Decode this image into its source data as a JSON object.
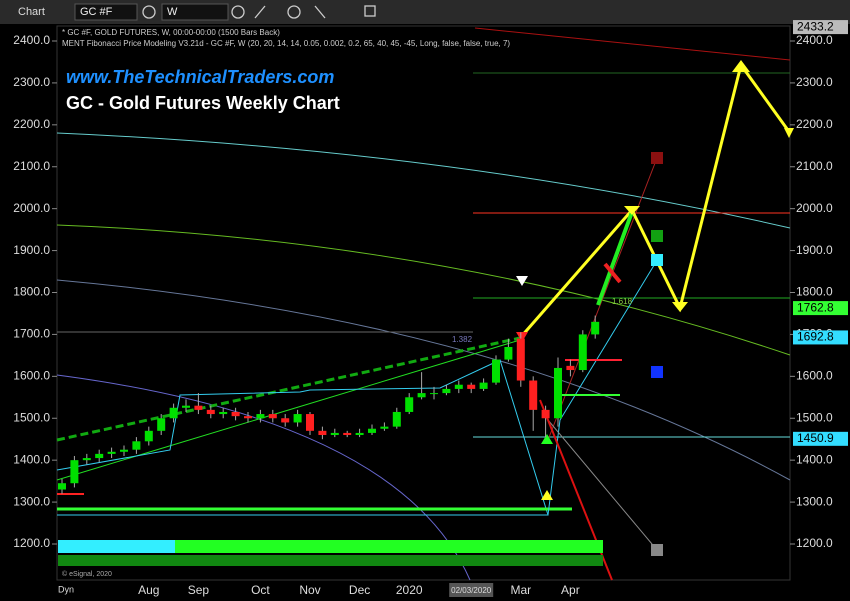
{
  "toolbar": {
    "app": "Chart",
    "symbol": "GC #F",
    "interval": "W"
  },
  "chart_data": {
    "type": "candlestick",
    "info_lines": [
      "* GC #F, GOLD FUTURES, W, 00:00-00:00 (1500 Bars Back)",
      "MENT Fibonacci Price Modeling V3.21d - GC #F, W (20, 20, 14, 14, 0.05, 0.002, 0.2, 65, 40, 45, -45, Long, false, false, true, 7)"
    ],
    "site": "www.TheTechnicalTraders.com",
    "title": "GC - Gold Futures Weekly Chart",
    "categories": [
      null,
      null,
      null,
      null,
      null,
      null,
      null,
      "Aug",
      null,
      null,
      null,
      "Sep",
      null,
      null,
      null,
      null,
      "Oct",
      null,
      null,
      null,
      "Nov",
      null,
      null,
      null,
      "Dec",
      null,
      null,
      null,
      "2020",
      null,
      null,
      null,
      null,
      "02/03/2020",
      null,
      null,
      null,
      "Mar",
      null,
      null,
      null,
      "Apr",
      null,
      null
    ],
    "candles": [
      {
        "open": 1330,
        "high": 1355,
        "low": 1320,
        "close": 1345
      },
      {
        "open": 1345,
        "high": 1410,
        "low": 1335,
        "close": 1400
      },
      {
        "open": 1400,
        "high": 1415,
        "low": 1390,
        "close": 1405
      },
      {
        "open": 1405,
        "high": 1425,
        "low": 1395,
        "close": 1415
      },
      {
        "open": 1415,
        "high": 1430,
        "low": 1405,
        "close": 1420
      },
      {
        "open": 1420,
        "high": 1435,
        "low": 1410,
        "close": 1425
      },
      {
        "open": 1425,
        "high": 1455,
        "low": 1415,
        "close": 1445
      },
      {
        "open": 1445,
        "high": 1480,
        "low": 1435,
        "close": 1470
      },
      {
        "open": 1470,
        "high": 1510,
        "low": 1460,
        "close": 1500
      },
      {
        "open": 1500,
        "high": 1535,
        "low": 1490,
        "close": 1525
      },
      {
        "open": 1525,
        "high": 1545,
        "low": 1515,
        "close": 1530
      },
      {
        "open": 1530,
        "high": 1560,
        "low": 1510,
        "close": 1520
      },
      {
        "open": 1520,
        "high": 1530,
        "low": 1500,
        "close": 1510
      },
      {
        "open": 1510,
        "high": 1525,
        "low": 1500,
        "close": 1515
      },
      {
        "open": 1515,
        "high": 1525,
        "low": 1495,
        "close": 1505
      },
      {
        "open": 1505,
        "high": 1515,
        "low": 1490,
        "close": 1500
      },
      {
        "open": 1500,
        "high": 1520,
        "low": 1490,
        "close": 1510
      },
      {
        "open": 1510,
        "high": 1520,
        "low": 1490,
        "close": 1500
      },
      {
        "open": 1500,
        "high": 1510,
        "low": 1480,
        "close": 1490
      },
      {
        "open": 1490,
        "high": 1520,
        "low": 1480,
        "close": 1510
      },
      {
        "open": 1510,
        "high": 1515,
        "low": 1460,
        "close": 1470
      },
      {
        "open": 1470,
        "high": 1480,
        "low": 1450,
        "close": 1460
      },
      {
        "open": 1460,
        "high": 1475,
        "low": 1455,
        "close": 1465
      },
      {
        "open": 1465,
        "high": 1470,
        "low": 1455,
        "close": 1460
      },
      {
        "open": 1460,
        "high": 1475,
        "low": 1455,
        "close": 1465
      },
      {
        "open": 1465,
        "high": 1485,
        "low": 1460,
        "close": 1475
      },
      {
        "open": 1475,
        "high": 1490,
        "low": 1470,
        "close": 1480
      },
      {
        "open": 1480,
        "high": 1525,
        "low": 1475,
        "close": 1515
      },
      {
        "open": 1515,
        "high": 1560,
        "low": 1510,
        "close": 1550
      },
      {
        "open": 1550,
        "high": 1610,
        "low": 1545,
        "close": 1560
      },
      {
        "open": 1560,
        "high": 1575,
        "low": 1545,
        "close": 1560
      },
      {
        "open": 1560,
        "high": 1580,
        "low": 1555,
        "close": 1570
      },
      {
        "open": 1570,
        "high": 1590,
        "low": 1560,
        "close": 1580
      },
      {
        "open": 1580,
        "high": 1585,
        "low": 1560,
        "close": 1570
      },
      {
        "open": 1570,
        "high": 1595,
        "low": 1565,
        "close": 1585
      },
      {
        "open": 1585,
        "high": 1650,
        "low": 1580,
        "close": 1640
      },
      {
        "open": 1640,
        "high": 1690,
        "low": 1635,
        "close": 1670
      },
      {
        "open": 1690,
        "high": 1705,
        "low": 1575,
        "close": 1590
      },
      {
        "open": 1590,
        "high": 1600,
        "low": 1470,
        "close": 1520
      },
      {
        "open": 1520,
        "high": 1530,
        "low": 1455,
        "close": 1500
      },
      {
        "open": 1500,
        "high": 1645,
        "low": 1480,
        "close": 1620
      },
      {
        "open": 1625,
        "high": 1640,
        "low": 1600,
        "close": 1615
      },
      {
        "open": 1615,
        "high": 1710,
        "low": 1610,
        "close": 1700
      },
      {
        "open": 1700,
        "high": 1745,
        "low": 1690,
        "close": 1730
      }
    ],
    "up_color": "#00e000",
    "down_color": "#ff2020",
    "ylim": [
      1200,
      2400
    ],
    "yticks": [
      {
        "value": 1200,
        "label": "1200.0"
      },
      {
        "value": 1300,
        "label": "1300.0"
      },
      {
        "value": 1400,
        "label": "1400.0"
      },
      {
        "value": 1500,
        "label": "1500.0"
      },
      {
        "value": 1600,
        "label": "1600.0"
      },
      {
        "value": 1700,
        "label": "1700.0"
      },
      {
        "value": 1800,
        "label": "1800.0"
      },
      {
        "value": 1900,
        "label": "1900.0"
      },
      {
        "value": 2000,
        "label": "2000.0"
      },
      {
        "value": 2100,
        "label": "2100.0"
      },
      {
        "value": 2200,
        "label": "2200.0"
      },
      {
        "value": 2300,
        "label": "2300.0"
      },
      {
        "value": 2400,
        "label": "2400.0"
      }
    ],
    "price_labels": [
      {
        "value": 2433.2,
        "label": "2433.2",
        "color": "#bbbbbb"
      },
      {
        "value": 1762.8,
        "label": "1762.8",
        "color": "#33ff33"
      },
      {
        "value": 1692.8,
        "label": "1692.8",
        "color": "#33ddff"
      },
      {
        "value": 1450.9,
        "label": "1450.9",
        "color": "#33ddff"
      }
    ],
    "fib_labels": [
      "1.382",
      "1.618"
    ],
    "footer": "© eSignal, 2020",
    "corner": "Dyn"
  }
}
